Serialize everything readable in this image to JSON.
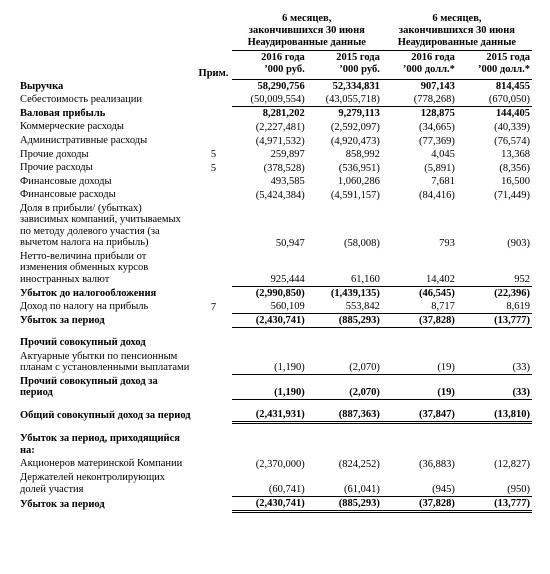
{
  "headers": {
    "group1_line1": "6 месяцев,",
    "group1_line2": "закончившихся 30 июня",
    "group1_line3": "Неаудированные данные",
    "group2_line1": "6 месяцев,",
    "group2_line2": "закончившихся 30 июня",
    "group2_line3": "Неаудированные данные",
    "note": "Прим.",
    "y2016_rub": "2016 года",
    "y2015_rub": "2015 года",
    "y2016_usd": "2016 года",
    "y2015_usd": "2015 года",
    "unit_rub": "’000 руб.",
    "unit_usd": "’000 долл.*"
  },
  "rows": {
    "r0": {
      "label": "Выручка",
      "note": "",
      "a": "58,290,756",
      "b": "52,334,831",
      "c": "907,143",
      "d": "814,455",
      "bold": true
    },
    "r1": {
      "label": "Себестоимость реализации",
      "note": "",
      "a": "(50,009,554)",
      "b": "(43,055,718)",
      "c": "(778,268)",
      "d": "(670,050)"
    },
    "r2": {
      "label": "Валовая прибыль",
      "note": "",
      "a": "8,281,202",
      "b": "9,279,113",
      "c": "128,875",
      "d": "144,405",
      "bold": true,
      "top": true
    },
    "r3": {
      "label": "Коммерческие расходы",
      "note": "",
      "a": "(2,227,481)",
      "b": "(2,592,097)",
      "c": "(34,665)",
      "d": "(40,339)"
    },
    "r4": {
      "label": "Административные расходы",
      "note": "",
      "a": "(4,971,532)",
      "b": "(4,920,473)",
      "c": "(77,369)",
      "d": "(76,574)"
    },
    "r5": {
      "label": "Прочие доходы",
      "note": "5",
      "a": "259,897",
      "b": "858,992",
      "c": "4,045",
      "d": "13,368"
    },
    "r6": {
      "label": "Прочие расходы",
      "note": "5",
      "a": "(378,528)",
      "b": "(536,951)",
      "c": "(5,891)",
      "d": "(8,356)"
    },
    "r7": {
      "label": "Финансовые доходы",
      "note": "",
      "a": "493,585",
      "b": "1,060,286",
      "c": "7,681",
      "d": "16,500"
    },
    "r8": {
      "label": "Финансовые расходы",
      "note": "",
      "a": "(5,424,384)",
      "b": "(4,591,157)",
      "c": "(84,416)",
      "d": "(71,449)"
    },
    "r9": {
      "label": "Доля в прибыли/ (убытках) зависимых компаний, учитываемых по методу долевого участия (за вычетом налога на прибыль)",
      "note": "",
      "a": "50,947",
      "b": "(58,008)",
      "c": "793",
      "d": "(903)"
    },
    "r10": {
      "label": "Нетто-величина прибыли от изменения обменных курсов иностранных валют",
      "note": "",
      "a": "925,444",
      "b": "61,160",
      "c": "14,402",
      "d": "952",
      "bottom": true
    },
    "r11": {
      "label": "Убыток до налогообложения",
      "note": "",
      "a": "(2,990,850)",
      "b": "(1,439,135)",
      "c": "(46,545)",
      "d": "(22,396)",
      "bold": true
    },
    "r12": {
      "label": "Доход по налогу на прибыль",
      "note": "7",
      "a": "560,109",
      "b": "553,842",
      "c": "8,717",
      "d": "8,619",
      "bottom": true
    },
    "r13": {
      "label": "Убыток за период",
      "note": "",
      "a": "(2,430,741)",
      "b": "(885,293)",
      "c": "(37,828)",
      "d": "(13,777)",
      "bold": true,
      "bottom": true
    },
    "r14": {
      "label": "Прочий совокупный доход",
      "note": "",
      "a": "",
      "b": "",
      "c": "",
      "d": "",
      "bold": true
    },
    "r15": {
      "label": "Актуарные убытки по пенсионным планам с установленными выплатами",
      "note": "",
      "a": "(1,190)",
      "b": "(2,070)",
      "c": "(19)",
      "d": "(33)",
      "bottom": true
    },
    "r16": {
      "label": "Прочий совокупный доход за период",
      "note": "",
      "a": "(1,190)",
      "b": "(2,070)",
      "c": "(19)",
      "d": "(33)",
      "bold": true,
      "bottom": true
    },
    "r17": {
      "label": "Общий совокупный доход за период",
      "note": "",
      "a": "(2,431,931)",
      "b": "(887,363)",
      "c": "(37,847)",
      "d": "(13,810)",
      "bold": true,
      "dbl": true
    },
    "r18": {
      "label": "Убыток за период, приходящийся на:",
      "note": "",
      "a": "",
      "b": "",
      "c": "",
      "d": "",
      "bold": true
    },
    "r19": {
      "label": "Акционеров материнской Компании",
      "note": "",
      "a": "(2,370,000)",
      "b": "(824,252)",
      "c": "(36,883)",
      "d": "(12,827)"
    },
    "r20": {
      "label": "Держателей неконтролирующих долей участия",
      "note": "",
      "a": "(60,741)",
      "b": "(61,041)",
      "c": "(945)",
      "d": "(950)",
      "bottom": true
    },
    "r21": {
      "label": "Убыток за период",
      "note": "",
      "a": "(2,430,741)",
      "b": "(885,293)",
      "c": "(37,828)",
      "d": "(13,777)",
      "bold": true,
      "dbl": true
    }
  }
}
